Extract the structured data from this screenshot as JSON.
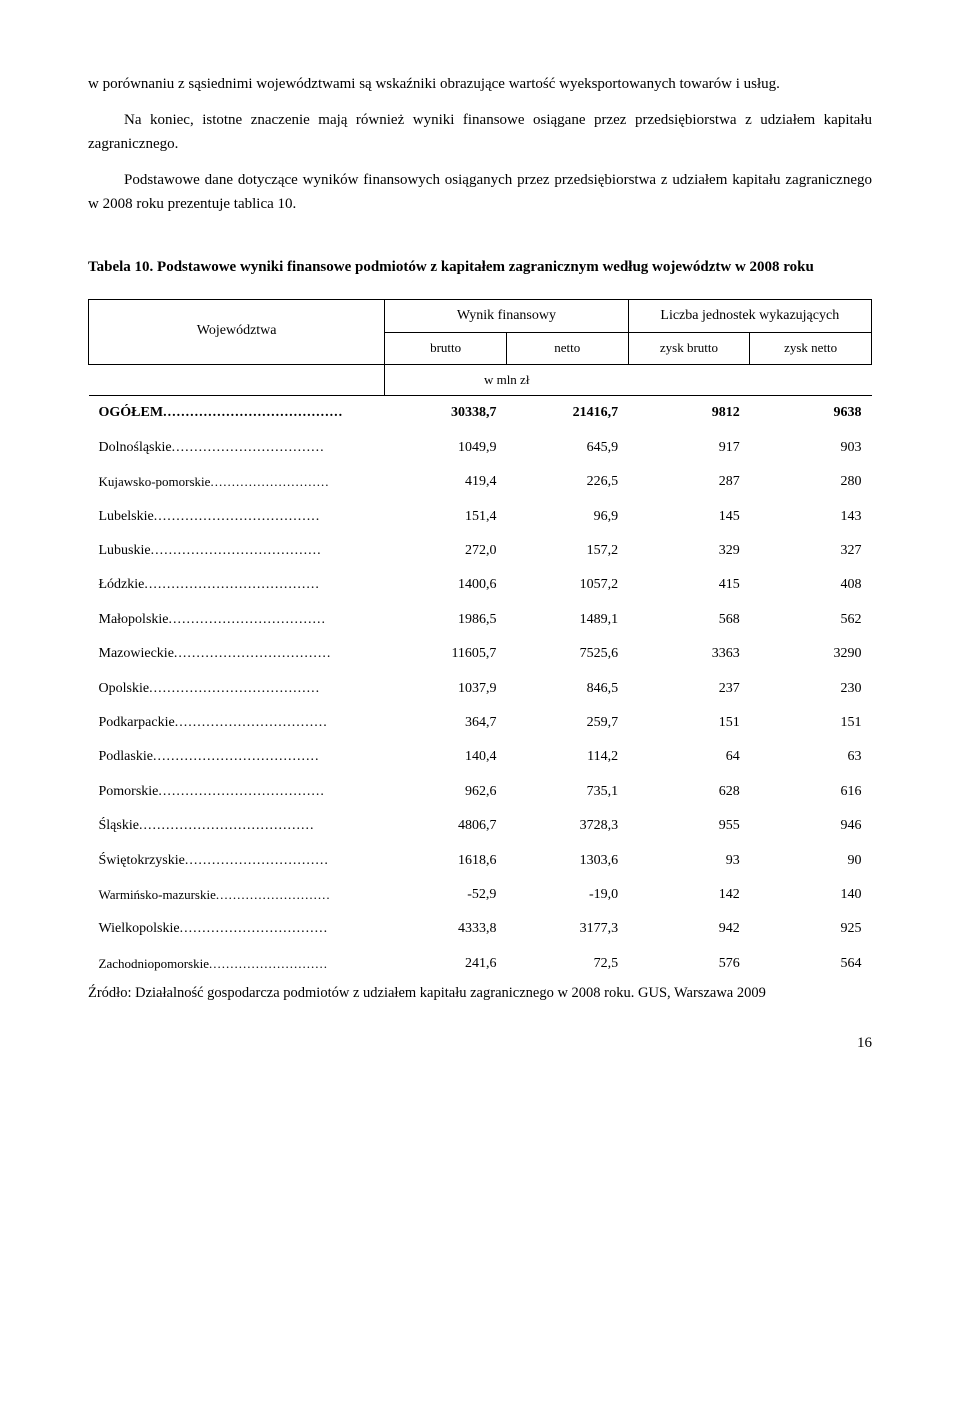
{
  "paragraphs": {
    "p1": "w porównaniu z sąsiednimi województwami są wskaźniki obrazujące wartość wyeksportowanych towarów i usług.",
    "p2": "Na koniec, istotne znaczenie mają również wyniki finansowe osiągane przez przedsiębiorstwa z udziałem kapitału zagranicznego.",
    "p3": "Podstawowe dane dotyczące wyników finansowych osiąganych przez przedsiębiorstwa z udziałem kapitału zagranicznego w 2008 roku prezentuje tablica 10."
  },
  "caption": {
    "label": "Tabela 10.",
    "text": "Podstawowe wyniki finansowe podmiotów z kapitałem zagranicznym według województw w 2008 roku"
  },
  "table": {
    "headers": {
      "col1": "Województwa",
      "group1": "Wynik finansowy",
      "group2": "Liczba jednostek wykazujących",
      "sub1": "brutto",
      "sub2": "netto",
      "sub3": "zysk brutto",
      "sub4": "zysk netto",
      "unit": "w mln zł"
    },
    "rows": [
      {
        "label": "OGÓŁEM",
        "bold": true,
        "v1": "30338,7",
        "v2": "21416,7",
        "v3": "9812",
        "v4": "9638"
      },
      {
        "label": "Dolnośląskie",
        "v1": "1049,9",
        "v2": "645,9",
        "v3": "917",
        "v4": "903"
      },
      {
        "label": "Kujawsko-pomorskie",
        "small": true,
        "v1": "419,4",
        "v2": "226,5",
        "v3": "287",
        "v4": "280"
      },
      {
        "label": "Lubelskie",
        "v1": "151,4",
        "v2": "96,9",
        "v3": "145",
        "v4": "143"
      },
      {
        "label": "Lubuskie",
        "v1": "272,0",
        "v2": "157,2",
        "v3": "329",
        "v4": "327"
      },
      {
        "label": "Łódzkie",
        "v1": "1400,6",
        "v2": "1057,2",
        "v3": "415",
        "v4": "408"
      },
      {
        "label": "Małopolskie",
        "v1": "1986,5",
        "v2": "1489,1",
        "v3": "568",
        "v4": "562"
      },
      {
        "label": "Mazowieckie",
        "v1": "11605,7",
        "v2": "7525,6",
        "v3": "3363",
        "v4": "3290"
      },
      {
        "label": "Opolskie",
        "v1": "1037,9",
        "v2": "846,5",
        "v3": "237",
        "v4": "230"
      },
      {
        "label": "Podkarpackie",
        "v1": "364,7",
        "v2": "259,7",
        "v3": "151",
        "v4": "151"
      },
      {
        "label": "Podlaskie",
        "v1": "140,4",
        "v2": "114,2",
        "v3": "64",
        "v4": "63"
      },
      {
        "label": "Pomorskie",
        "v1": "962,6",
        "v2": "735,1",
        "v3": "628",
        "v4": "616"
      },
      {
        "label": "Śląskie",
        "v1": "4806,7",
        "v2": "3728,3",
        "v3": "955",
        "v4": "946"
      },
      {
        "label": "Świętokrzyskie",
        "v1": "1618,6",
        "v2": "1303,6",
        "v3": "93",
        "v4": "90"
      },
      {
        "label": "Warmińsko-mazurskie",
        "small": true,
        "v1": "-52,9",
        "v2": "-19,0",
        "v3": "142",
        "v4": "140"
      },
      {
        "label": "Wielkopolskie",
        "v1": "4333,8",
        "v2": "3177,3",
        "v3": "942",
        "v4": "925"
      },
      {
        "label": "Zachodniopomorskie",
        "small": true,
        "v1": "241,6",
        "v2": "72,5",
        "v3": "576",
        "v4": "564"
      }
    ]
  },
  "source": "Źródło: Działalność gospodarcza podmiotów z udziałem kapitału zagranicznego w 2008 roku. GUS, Warszawa 2009",
  "page_number": "16"
}
